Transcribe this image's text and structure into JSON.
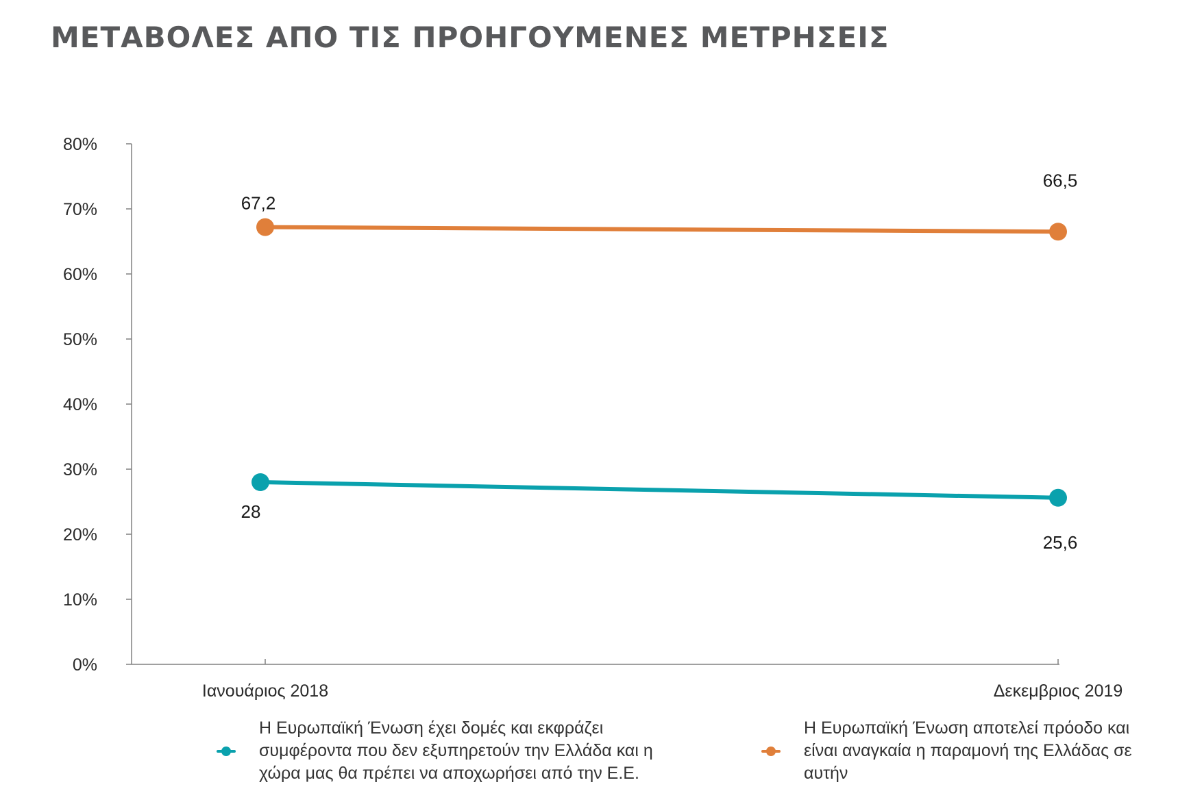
{
  "header": {
    "title": "ΜΕΤΑΒΟΛΕΣ ΑΠΟ ΤΙΣ ΠΡΟΗΓΟΥΜΕΝΕΣ ΜΕΤΡΗΣΕΙΣ"
  },
  "chart_data": {
    "type": "line",
    "title": "ΜΕΤΑΒΟΛΕΣ ΑΠΟ ΤΙΣ ΠΡΟΗΓΟΥΜΕΝΕΣ ΜΕΤΡΗΣΕΙΣ",
    "xlabel": "",
    "ylabel": "",
    "categories": [
      "Ιανουάριος 2018",
      "Δεκεμβριος 2019"
    ],
    "y_ticks": [
      "0%",
      "10%",
      "20%",
      "30%",
      "40%",
      "50%",
      "60%",
      "70%",
      "80%"
    ],
    "ylim": [
      0,
      80
    ],
    "grid": false,
    "legend_position": "bottom",
    "series": [
      {
        "name": "Η Ευρωπαϊκή Ένωση έχει δομές και εκφράζει συμφέροντα που δεν εξυπηρετούν την Ελλάδα και η χώρα μας θα πρέπει να αποχωρήσει από την Ε.Ε.",
        "values": [
          28,
          25.6
        ],
        "labels": [
          "28",
          "25,6"
        ],
        "color": "#0aa1ad"
      },
      {
        "name": "Η Ευρωπαϊκή Ένωση αποτελεί πρόοδο και είναι αναγκαία η παραμονή της Ελλάδας σε αυτήν",
        "values": [
          67.2,
          66.5
        ],
        "labels": [
          "67,2",
          "66,5"
        ],
        "color": "#e07f3a"
      }
    ]
  }
}
